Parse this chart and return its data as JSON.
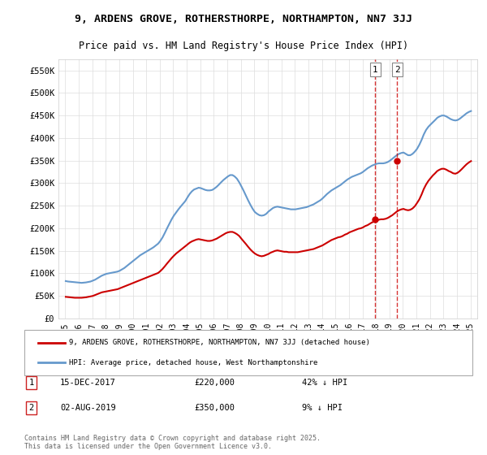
{
  "title": "9, ARDENS GROVE, ROTHERSTHORPE, NORTHAMPTON, NN7 3JJ",
  "subtitle": "Price paid vs. HM Land Registry's House Price Index (HPI)",
  "xlabel": "",
  "ylabel": "",
  "background_color": "#ffffff",
  "plot_bg_color": "#ffffff",
  "grid_color": "#dddddd",
  "ylim": [
    0,
    575000
  ],
  "yticks": [
    0,
    50000,
    100000,
    150000,
    200000,
    250000,
    300000,
    350000,
    400000,
    450000,
    500000,
    550000
  ],
  "ytick_labels": [
    "£0",
    "£50K",
    "£100K",
    "£150K",
    "£200K",
    "£250K",
    "£300K",
    "£350K",
    "£400K",
    "£450K",
    "£500K",
    "£550K"
  ],
  "transaction1": {
    "date_num": 2017.96,
    "price": 220000,
    "label": "1",
    "date_str": "15-DEC-2017",
    "pct": "42% ↓ HPI"
  },
  "transaction2": {
    "date_num": 2019.58,
    "price": 350000,
    "label": "2",
    "date_str": "02-AUG-2019",
    "pct": "9% ↓ HPI"
  },
  "line1_color": "#cc0000",
  "line2_color": "#6699cc",
  "vline_color": "#cc0000",
  "legend1_label": "9, ARDENS GROVE, ROTHERSTHORPE, NORTHAMPTON, NN7 3JJ (detached house)",
  "legend2_label": "HPI: Average price, detached house, West Northamptonshire",
  "footer": "Contains HM Land Registry data © Crown copyright and database right 2025.\nThis data is licensed under the Open Government Licence v3.0.",
  "hpi_data": {
    "years": [
      1995.04,
      1995.21,
      1995.38,
      1995.54,
      1995.71,
      1995.88,
      1996.04,
      1996.21,
      1996.38,
      1996.54,
      1996.71,
      1996.88,
      1997.04,
      1997.21,
      1997.38,
      1997.54,
      1997.71,
      1997.88,
      1998.04,
      1998.21,
      1998.38,
      1998.54,
      1998.71,
      1998.88,
      1999.04,
      1999.21,
      1999.38,
      1999.54,
      1999.71,
      1999.88,
      2000.04,
      2000.21,
      2000.38,
      2000.54,
      2000.71,
      2000.88,
      2001.04,
      2001.21,
      2001.38,
      2001.54,
      2001.71,
      2001.88,
      2002.04,
      2002.21,
      2002.38,
      2002.54,
      2002.71,
      2002.88,
      2003.04,
      2003.21,
      2003.38,
      2003.54,
      2003.71,
      2003.88,
      2004.04,
      2004.21,
      2004.38,
      2004.54,
      2004.71,
      2004.88,
      2005.04,
      2005.21,
      2005.38,
      2005.54,
      2005.71,
      2005.88,
      2006.04,
      2006.21,
      2006.38,
      2006.54,
      2006.71,
      2006.88,
      2007.04,
      2007.21,
      2007.38,
      2007.54,
      2007.71,
      2007.88,
      2008.04,
      2008.21,
      2008.38,
      2008.54,
      2008.71,
      2008.88,
      2009.04,
      2009.21,
      2009.38,
      2009.54,
      2009.71,
      2009.88,
      2010.04,
      2010.21,
      2010.38,
      2010.54,
      2010.71,
      2010.88,
      2011.04,
      2011.21,
      2011.38,
      2011.54,
      2011.71,
      2011.88,
      2012.04,
      2012.21,
      2012.38,
      2012.54,
      2012.71,
      2012.88,
      2013.04,
      2013.21,
      2013.38,
      2013.54,
      2013.71,
      2013.88,
      2014.04,
      2014.21,
      2014.38,
      2014.54,
      2014.71,
      2014.88,
      2015.04,
      2015.21,
      2015.38,
      2015.54,
      2015.71,
      2015.88,
      2016.04,
      2016.21,
      2016.38,
      2016.54,
      2016.71,
      2016.88,
      2017.04,
      2017.21,
      2017.38,
      2017.54,
      2017.71,
      2017.88,
      2018.04,
      2018.21,
      2018.38,
      2018.54,
      2018.71,
      2018.88,
      2019.04,
      2019.21,
      2019.38,
      2019.54,
      2019.71,
      2019.88,
      2020.04,
      2020.21,
      2020.38,
      2020.54,
      2020.71,
      2020.88,
      2021.04,
      2021.21,
      2021.38,
      2021.54,
      2021.71,
      2021.88,
      2022.04,
      2022.21,
      2022.38,
      2022.54,
      2022.71,
      2022.88,
      2023.04,
      2023.21,
      2023.38,
      2023.54,
      2023.71,
      2023.88,
      2024.04,
      2024.21,
      2024.38,
      2024.54,
      2024.71,
      2024.88,
      2025.04
    ],
    "values": [
      83000,
      82000,
      81500,
      81000,
      80500,
      80000,
      79500,
      79000,
      79500,
      80000,
      81000,
      82000,
      84000,
      86000,
      89000,
      92000,
      95000,
      97000,
      99000,
      100000,
      101000,
      102000,
      103000,
      104000,
      106000,
      109000,
      112000,
      116000,
      120000,
      124000,
      128000,
      132000,
      136000,
      140000,
      143000,
      146000,
      149000,
      152000,
      155000,
      158000,
      162000,
      166000,
      172000,
      180000,
      190000,
      200000,
      210000,
      220000,
      228000,
      235000,
      242000,
      248000,
      254000,
      260000,
      268000,
      276000,
      282000,
      286000,
      288000,
      290000,
      289000,
      287000,
      285000,
      284000,
      284000,
      285000,
      288000,
      292000,
      297000,
      302000,
      307000,
      311000,
      315000,
      318000,
      318000,
      315000,
      310000,
      302000,
      293000,
      283000,
      272000,
      262000,
      252000,
      243000,
      236000,
      232000,
      229000,
      228000,
      229000,
      232000,
      237000,
      241000,
      245000,
      247000,
      248000,
      247000,
      246000,
      245000,
      244000,
      243000,
      242000,
      242000,
      242000,
      243000,
      244000,
      245000,
      246000,
      247000,
      249000,
      251000,
      253000,
      256000,
      259000,
      262000,
      266000,
      271000,
      276000,
      280000,
      284000,
      287000,
      290000,
      293000,
      296000,
      300000,
      304000,
      308000,
      311000,
      314000,
      316000,
      318000,
      320000,
      322000,
      325000,
      329000,
      333000,
      336000,
      339000,
      341000,
      343000,
      344000,
      344000,
      344000,
      345000,
      347000,
      350000,
      354000,
      358000,
      362000,
      365000,
      367000,
      368000,
      365000,
      362000,
      362000,
      365000,
      370000,
      376000,
      385000,
      396000,
      408000,
      418000,
      425000,
      430000,
      435000,
      440000,
      445000,
      448000,
      450000,
      450000,
      448000,
      445000,
      442000,
      440000,
      439000,
      440000,
      443000,
      447000,
      451000,
      455000,
      458000,
      460000
    ]
  },
  "price_paid_data": {
    "years": [
      1995.04,
      1995.21,
      1995.38,
      1995.54,
      1995.71,
      1995.88,
      1996.04,
      1996.21,
      1996.38,
      1996.54,
      1996.71,
      1996.88,
      1997.04,
      1997.21,
      1997.38,
      1997.54,
      1997.71,
      1997.88,
      1998.04,
      1998.21,
      1998.38,
      1998.54,
      1998.71,
      1998.88,
      1999.04,
      1999.21,
      1999.38,
      1999.54,
      1999.71,
      1999.88,
      2000.04,
      2000.21,
      2000.38,
      2000.54,
      2000.71,
      2000.88,
      2001.04,
      2001.21,
      2001.38,
      2001.54,
      2001.71,
      2001.88,
      2002.04,
      2002.21,
      2002.38,
      2002.54,
      2002.71,
      2002.88,
      2003.04,
      2003.21,
      2003.38,
      2003.54,
      2003.71,
      2003.88,
      2004.04,
      2004.21,
      2004.38,
      2004.54,
      2004.71,
      2004.88,
      2005.04,
      2005.21,
      2005.38,
      2005.54,
      2005.71,
      2005.88,
      2006.04,
      2006.21,
      2006.38,
      2006.54,
      2006.71,
      2006.88,
      2007.04,
      2007.21,
      2007.38,
      2007.54,
      2007.71,
      2007.88,
      2008.04,
      2008.21,
      2008.38,
      2008.54,
      2008.71,
      2008.88,
      2009.04,
      2009.21,
      2009.38,
      2009.54,
      2009.71,
      2009.88,
      2010.04,
      2010.21,
      2010.38,
      2010.54,
      2010.71,
      2010.88,
      2011.04,
      2011.21,
      2011.38,
      2011.54,
      2011.71,
      2011.88,
      2012.04,
      2012.21,
      2012.38,
      2012.54,
      2012.71,
      2012.88,
      2013.04,
      2013.21,
      2013.38,
      2013.54,
      2013.71,
      2013.88,
      2014.04,
      2014.21,
      2014.38,
      2014.54,
      2014.71,
      2014.88,
      2015.04,
      2015.21,
      2015.38,
      2015.54,
      2015.71,
      2015.88,
      2016.04,
      2016.21,
      2016.38,
      2016.54,
      2016.71,
      2016.88,
      2017.04,
      2017.21,
      2017.38,
      2017.54,
      2017.71,
      2017.88,
      2018.04,
      2018.21,
      2018.38,
      2018.54,
      2018.71,
      2018.88,
      2019.04,
      2019.21,
      2019.38,
      2019.54,
      2019.71,
      2019.88,
      2020.04,
      2020.21,
      2020.38,
      2020.54,
      2020.71,
      2020.88,
      2021.04,
      2021.21,
      2021.38,
      2021.54,
      2021.71,
      2021.88,
      2022.04,
      2022.21,
      2022.38,
      2022.54,
      2022.71,
      2022.88,
      2023.04,
      2023.21,
      2023.38,
      2023.54,
      2023.71,
      2023.88,
      2024.04,
      2024.21,
      2024.38,
      2024.54,
      2024.71,
      2024.88,
      2025.04
    ],
    "values": [
      48000,
      47500,
      47000,
      46500,
      46000,
      46000,
      46000,
      46000,
      46500,
      47000,
      48000,
      49000,
      50000,
      52000,
      54000,
      56000,
      58000,
      59000,
      60000,
      61000,
      62000,
      63000,
      64000,
      65000,
      67000,
      69000,
      71000,
      73000,
      75000,
      77000,
      79000,
      81000,
      83000,
      85000,
      87000,
      89000,
      91000,
      93000,
      95000,
      97000,
      99000,
      101000,
      105000,
      110000,
      116000,
      122000,
      128000,
      134000,
      139000,
      144000,
      148000,
      152000,
      156000,
      160000,
      164000,
      168000,
      171000,
      173000,
      175000,
      176000,
      175000,
      174000,
      173000,
      172000,
      172000,
      173000,
      175000,
      177000,
      180000,
      183000,
      186000,
      189000,
      191000,
      192000,
      192000,
      190000,
      187000,
      183000,
      177000,
      171000,
      165000,
      159000,
      153000,
      148000,
      144000,
      141000,
      139000,
      138000,
      139000,
      141000,
      143000,
      146000,
      148000,
      150000,
      151000,
      150000,
      149000,
      148000,
      148000,
      147000,
      147000,
      147000,
      147000,
      147000,
      148000,
      149000,
      150000,
      151000,
      152000,
      153000,
      154000,
      156000,
      158000,
      160000,
      162000,
      165000,
      168000,
      171000,
      174000,
      176000,
      178000,
      180000,
      181000,
      183000,
      186000,
      188000,
      191000,
      193000,
      195000,
      197000,
      199000,
      200000,
      202000,
      205000,
      207000,
      210000,
      213000,
      215000,
      217000,
      219000,
      220000,
      220000,
      221000,
      223000,
      226000,
      229000,
      233000,
      237000,
      240000,
      242000,
      243000,
      241000,
      240000,
      241000,
      244000,
      249000,
      256000,
      264000,
      275000,
      287000,
      297000,
      305000,
      311000,
      317000,
      322000,
      327000,
      330000,
      332000,
      332000,
      330000,
      327000,
      325000,
      322000,
      321000,
      323000,
      327000,
      332000,
      337000,
      342000,
      346000,
      349000
    ]
  }
}
